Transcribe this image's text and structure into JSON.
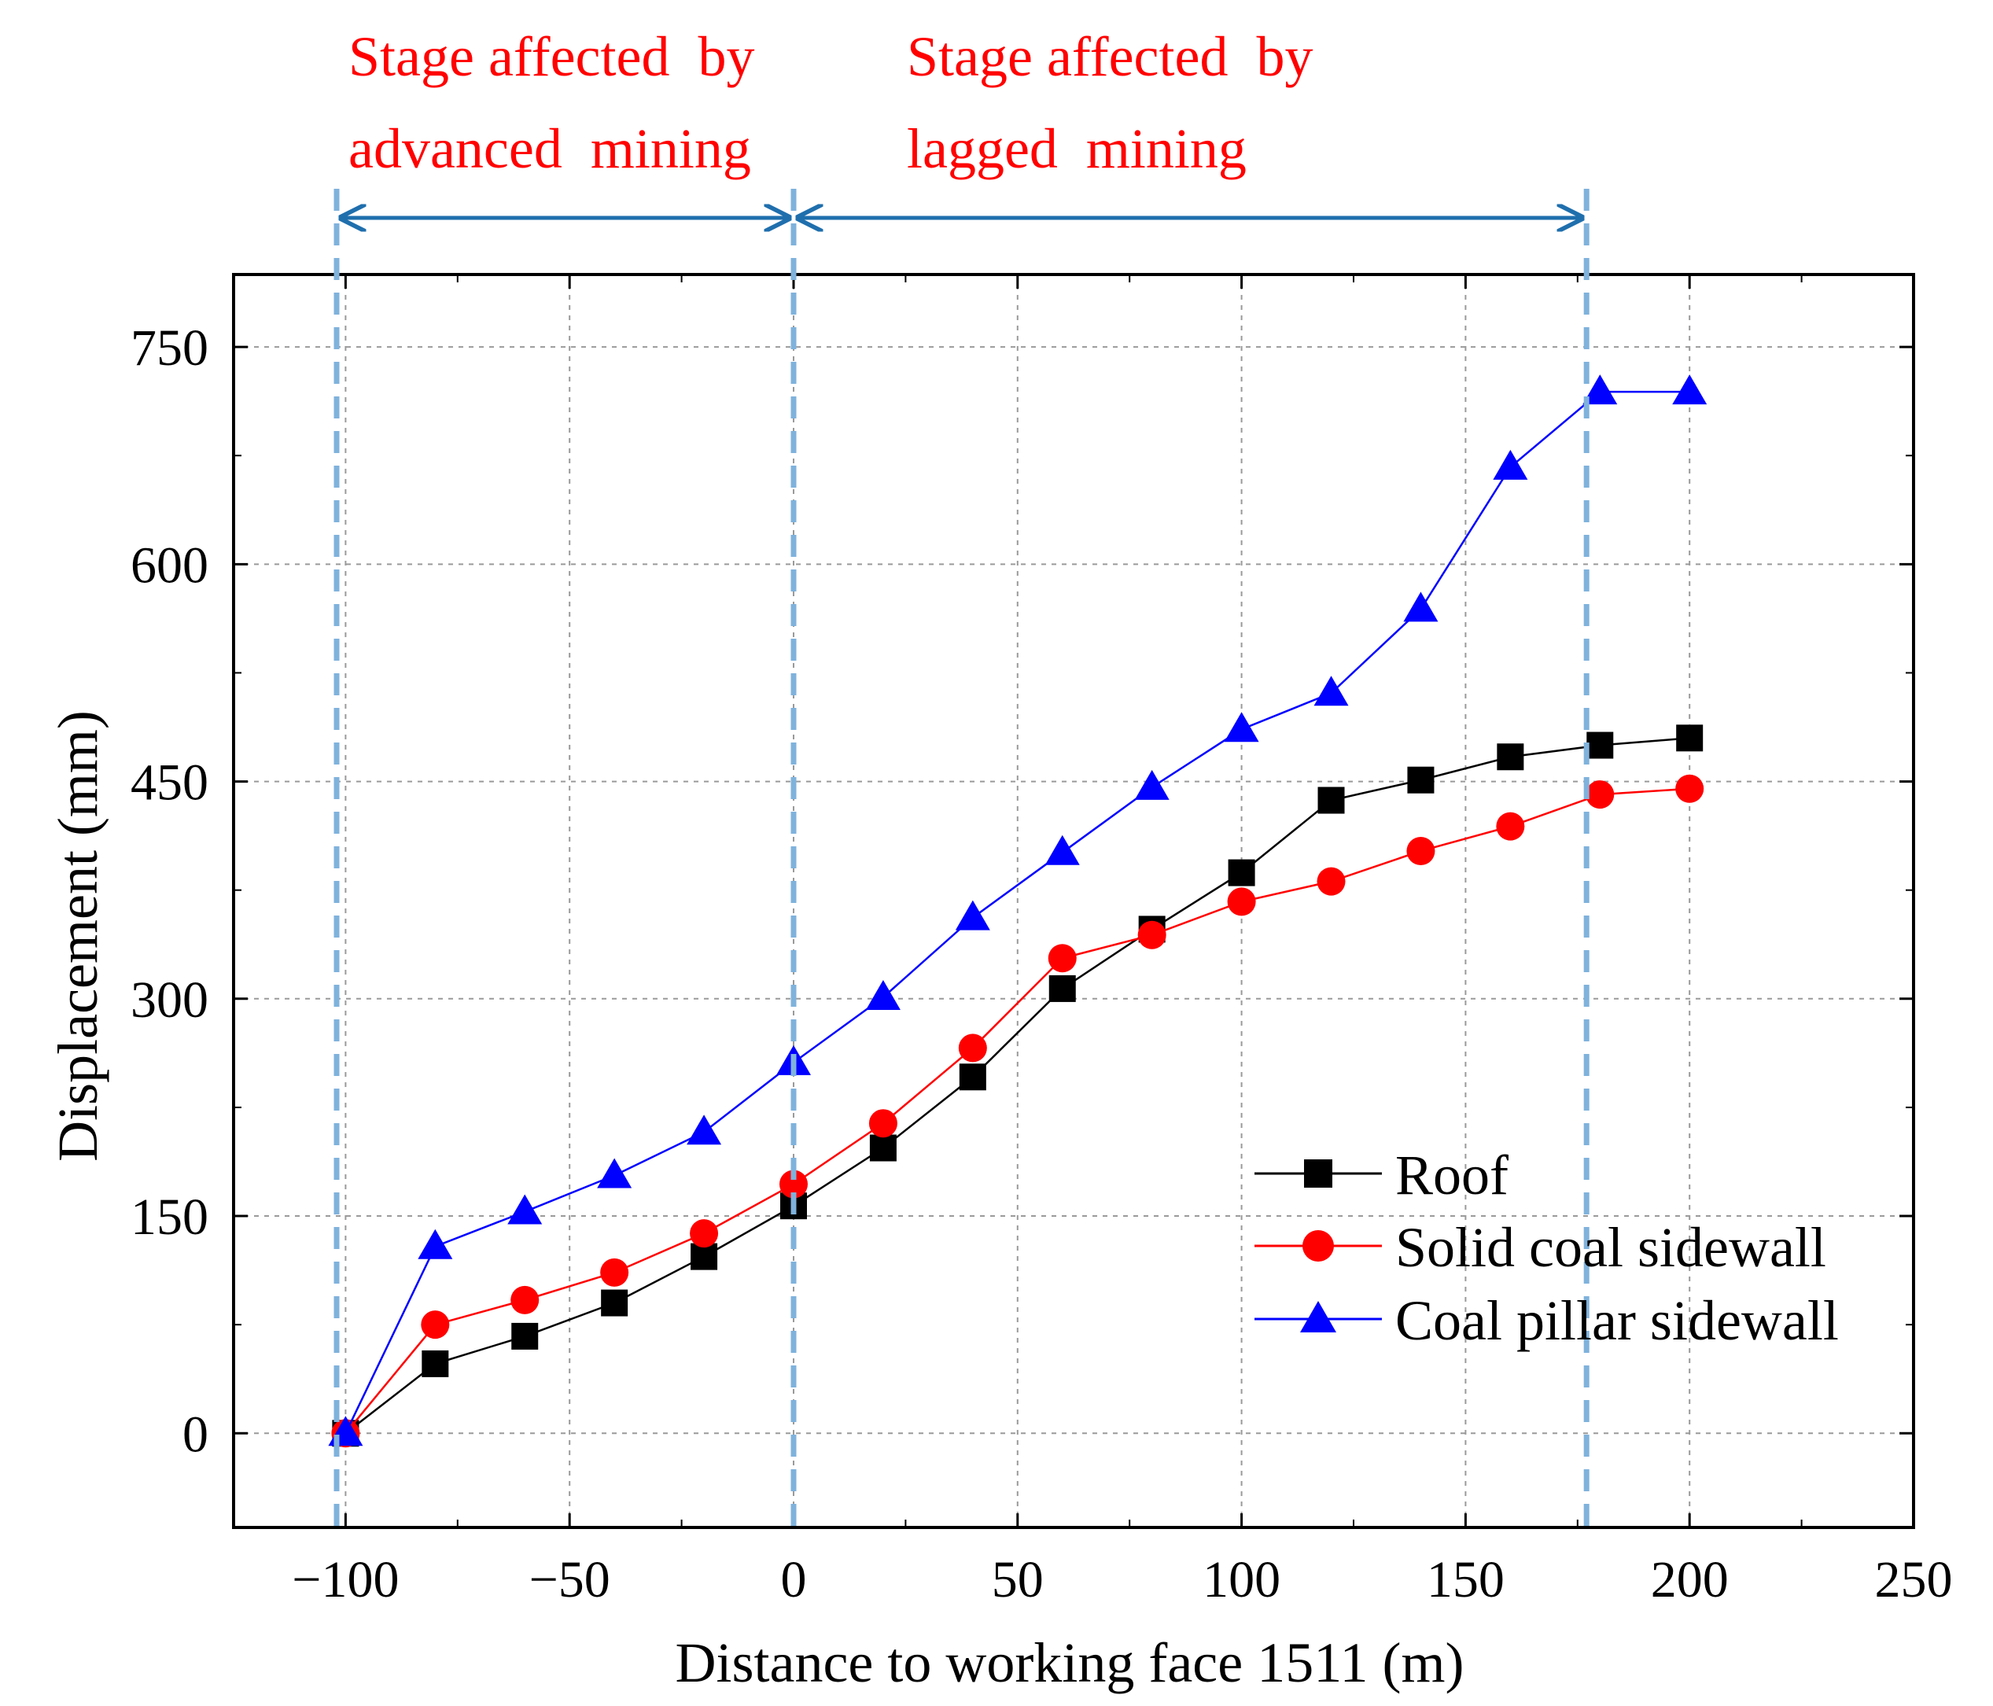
{
  "chart_data": {
    "type": "line",
    "title": "",
    "xlabel": "Distance to working face 1511 (m)",
    "ylabel": "Displacement (mm)",
    "xlim": [
      -125,
      250
    ],
    "ylim": [
      -65,
      800
    ],
    "xticks": [
      -100,
      -50,
      0,
      50,
      100,
      150,
      200,
      250
    ],
    "yticks": [
      0,
      150,
      300,
      450,
      600,
      750
    ],
    "xtick_labels": [
      "−100",
      "−50",
      "0",
      "50",
      "100",
      "150",
      "200",
      "250"
    ],
    "ytick_labels": [
      "0",
      "150",
      "300",
      "450",
      "600",
      "750"
    ],
    "grid": true,
    "legend_position": "bottom-right",
    "x": [
      -100,
      -80,
      -60,
      -40,
      -20,
      0,
      20,
      40,
      60,
      80,
      100,
      120,
      140,
      160,
      180,
      200
    ],
    "series": [
      {
        "name": "Roof",
        "color": "#000000",
        "marker": "square",
        "values": [
          0,
          48,
          67,
          90,
          122,
          157,
          197,
          246,
          307,
          348,
          387,
          437,
          451,
          467,
          475,
          480
        ]
      },
      {
        "name": "Solid coal sidewall",
        "color": "#ff0000",
        "marker": "circle",
        "values": [
          0,
          75,
          92,
          111,
          138,
          172,
          214,
          266,
          328,
          344,
          367,
          381,
          402,
          419,
          441,
          445
        ]
      },
      {
        "name": "Coal pillar sidewall",
        "color": "#0000ff",
        "marker": "triangle",
        "values": [
          0,
          129,
          153,
          178,
          208,
          256,
          301,
          356,
          401,
          446,
          486,
          511,
          569,
          667,
          719,
          719
        ]
      }
    ],
    "annotations": {
      "stage_boundaries_x": [
        -102,
        0,
        177
      ],
      "boundary_color": "#7fb2dc",
      "arrow_color": "#1f6fad",
      "text_color": "#ff0000",
      "stages": [
        {
          "line1": "Stage affected  by",
          "line2": "advanced  mining"
        },
        {
          "line1": "Stage affected  by",
          "line2": "lagged  mining"
        }
      ]
    }
  }
}
